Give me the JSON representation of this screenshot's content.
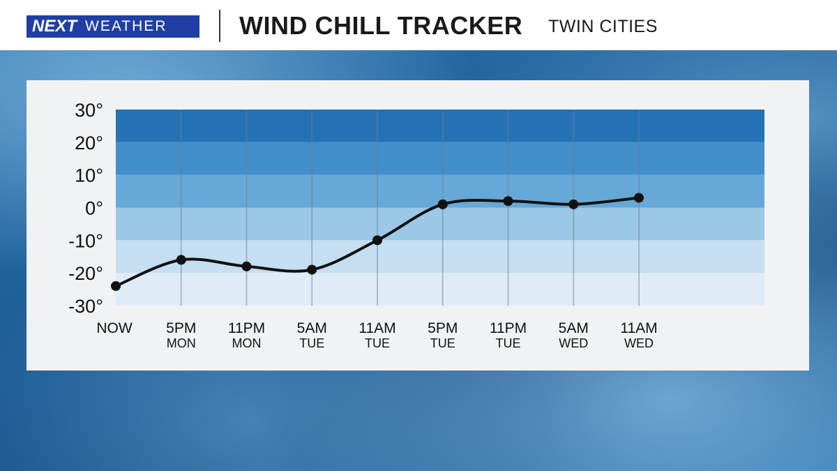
{
  "header": {
    "logo_next": "NEXT",
    "logo_weather": "WEATHER",
    "title": "WIND CHILL TRACKER",
    "location": "TWIN CITIES"
  },
  "chart_data": {
    "type": "line",
    "y_ticks": [
      "30°",
      "20°",
      "10°",
      "0°",
      "-10°",
      "-20°",
      "-30°"
    ],
    "y_tick_values": [
      30,
      20,
      10,
      0,
      -10,
      -20,
      -30
    ],
    "ylim": [
      -30,
      30
    ],
    "categories": [
      {
        "time": "NOW",
        "day": ""
      },
      {
        "time": "5PM",
        "day": "MON"
      },
      {
        "time": "11PM",
        "day": "MON"
      },
      {
        "time": "5AM",
        "day": "TUE"
      },
      {
        "time": "11AM",
        "day": "TUE"
      },
      {
        "time": "5PM",
        "day": "TUE"
      },
      {
        "time": "11PM",
        "day": "TUE"
      },
      {
        "time": "5AM",
        "day": "WED"
      },
      {
        "time": "11AM",
        "day": "WED"
      }
    ],
    "values": [
      -24,
      -16,
      -18,
      -19,
      -10,
      1,
      2,
      1,
      3
    ],
    "bands": [
      {
        "from": 20,
        "to": 30,
        "color": "#2472b5"
      },
      {
        "from": 10,
        "to": 20,
        "color": "#428fca"
      },
      {
        "from": 0,
        "to": 10,
        "color": "#66a9d8"
      },
      {
        "from": -10,
        "to": 0,
        "color": "#9ac8e6"
      },
      {
        "from": -20,
        "to": -10,
        "color": "#c6def1"
      },
      {
        "from": -30,
        "to": -20,
        "color": "#dfecf8"
      }
    ],
    "line_color": "#111111",
    "grid": true
  }
}
